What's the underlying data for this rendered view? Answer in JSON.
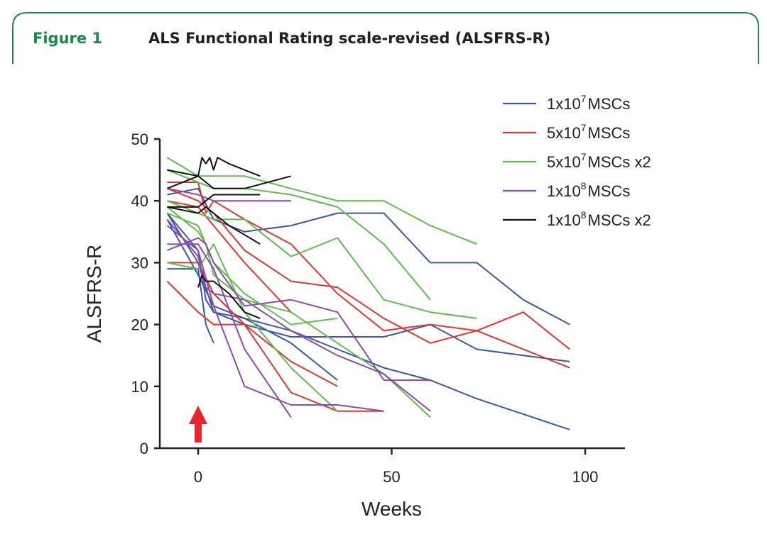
{
  "figure": {
    "label": "Figure 1",
    "title": "ALS Functional Rating scale-revised (ALSFRS-R)"
  },
  "colors": {
    "accent": "#1a8a4c",
    "arrow": "#e8262b"
  },
  "chart_data": {
    "type": "line",
    "title": "",
    "xlabel": "Weeks",
    "ylabel": "ALSFRS-R",
    "xlim": [
      -10,
      110
    ],
    "ylim": [
      0,
      50
    ],
    "xticks": [
      "0",
      "50",
      "100"
    ],
    "yticks": [
      "0",
      "10",
      "20",
      "30",
      "40",
      "50"
    ],
    "annotation": "Red upward arrow at week 0",
    "legend_position": "top-right",
    "legend": [
      {
        "base": "1x10",
        "exp": "7",
        "suffix": "MSCs",
        "color": "#3b58a8"
      },
      {
        "base": "5x10",
        "exp": "7",
        "suffix": "MSCs",
        "color": "#e8322c"
      },
      {
        "base": "5x10",
        "exp": "7",
        "suffix": "MSCs x2",
        "color": "#5cbf4a"
      },
      {
        "base": "1x10",
        "exp": "8",
        "suffix": "MSCs",
        "color": "#8a4bb0"
      },
      {
        "base": "1x10",
        "exp": "8",
        "suffix": "MSCs x2",
        "color": "#111111"
      }
    ],
    "series": [
      {
        "group": 0,
        "points": [
          [
            -8,
            41
          ],
          [
            0,
            42
          ],
          [
            4,
            37
          ],
          [
            12,
            35
          ],
          [
            24,
            36
          ],
          [
            36,
            38
          ],
          [
            48,
            38
          ],
          [
            60,
            30
          ],
          [
            72,
            30
          ],
          [
            84,
            24
          ],
          [
            96,
            20
          ]
        ]
      },
      {
        "group": 0,
        "points": [
          [
            -8,
            38
          ],
          [
            0,
            30
          ],
          [
            4,
            22
          ],
          [
            12,
            20
          ],
          [
            24,
            18
          ],
          [
            36,
            18
          ],
          [
            48,
            18
          ],
          [
            60,
            20
          ],
          [
            72,
            16
          ],
          [
            96,
            14
          ]
        ]
      },
      {
        "group": 0,
        "points": [
          [
            -8,
            37
          ],
          [
            0,
            28
          ],
          [
            4,
            23
          ],
          [
            12,
            21
          ],
          [
            24,
            19
          ],
          [
            36,
            16
          ],
          [
            48,
            13
          ],
          [
            60,
            11
          ],
          [
            72,
            8
          ],
          [
            96,
            3
          ]
        ]
      },
      {
        "group": 0,
        "points": [
          [
            -8,
            29
          ],
          [
            0,
            29
          ],
          [
            2,
            20
          ],
          [
            4,
            17
          ]
        ]
      },
      {
        "group": 0,
        "points": [
          [
            -8,
            38
          ],
          [
            0,
            32
          ],
          [
            2,
            24
          ],
          [
            4,
            22
          ],
          [
            12,
            21
          ],
          [
            24,
            17
          ],
          [
            36,
            11
          ]
        ]
      },
      {
        "group": 1,
        "points": [
          [
            -8,
            43
          ],
          [
            0,
            43
          ],
          [
            2,
            38
          ],
          [
            4,
            40
          ],
          [
            12,
            37
          ],
          [
            24,
            33
          ],
          [
            36,
            25
          ],
          [
            48,
            19
          ],
          [
            60,
            20
          ],
          [
            72,
            19
          ],
          [
            84,
            22
          ],
          [
            96,
            16
          ]
        ]
      },
      {
        "group": 1,
        "points": [
          [
            -8,
            42
          ],
          [
            0,
            40
          ],
          [
            4,
            38
          ],
          [
            12,
            32
          ],
          [
            24,
            27
          ],
          [
            36,
            26
          ],
          [
            48,
            21
          ],
          [
            60,
            17
          ],
          [
            72,
            19
          ],
          [
            96,
            13
          ]
        ]
      },
      {
        "group": 1,
        "points": [
          [
            -8,
            30
          ],
          [
            0,
            30
          ],
          [
            4,
            25
          ],
          [
            12,
            20
          ],
          [
            24,
            14
          ],
          [
            36,
            10
          ]
        ]
      },
      {
        "group": 1,
        "points": [
          [
            -8,
            27
          ],
          [
            0,
            22
          ],
          [
            4,
            20
          ],
          [
            12,
            20
          ],
          [
            24,
            9
          ],
          [
            36,
            6
          ],
          [
            48,
            6
          ]
        ]
      },
      {
        "group": 1,
        "points": [
          [
            -8,
            40
          ],
          [
            0,
            39
          ],
          [
            4,
            36
          ],
          [
            12,
            30
          ],
          [
            24,
            22
          ]
        ]
      },
      {
        "group": 2,
        "points": [
          [
            -8,
            47
          ],
          [
            0,
            44
          ],
          [
            4,
            44
          ],
          [
            12,
            44
          ],
          [
            24,
            42
          ],
          [
            36,
            40
          ],
          [
            48,
            40
          ],
          [
            60,
            36
          ],
          [
            72,
            33
          ]
        ]
      },
      {
        "group": 2,
        "points": [
          [
            -8,
            45
          ],
          [
            0,
            43
          ],
          [
            4,
            42
          ],
          [
            12,
            42
          ],
          [
            24,
            41
          ],
          [
            36,
            39
          ],
          [
            48,
            33
          ],
          [
            60,
            24
          ]
        ]
      },
      {
        "group": 2,
        "points": [
          [
            -8,
            40
          ],
          [
            0,
            38
          ],
          [
            4,
            37
          ],
          [
            12,
            37
          ],
          [
            24,
            31
          ],
          [
            36,
            34
          ],
          [
            48,
            24
          ],
          [
            60,
            22
          ],
          [
            72,
            21
          ]
        ]
      },
      {
        "group": 2,
        "points": [
          [
            -8,
            38
          ],
          [
            0,
            36
          ],
          [
            4,
            30
          ],
          [
            12,
            25
          ],
          [
            24,
            20
          ],
          [
            36,
            21
          ]
        ]
      },
      {
        "group": 2,
        "points": [
          [
            -8,
            39
          ],
          [
            0,
            35
          ],
          [
            2,
            33
          ],
          [
            4,
            28
          ],
          [
            12,
            24
          ],
          [
            24,
            22
          ],
          [
            36,
            17
          ],
          [
            48,
            12
          ],
          [
            60,
            5
          ]
        ]
      },
      {
        "group": 2,
        "points": [
          [
            -8,
            30
          ],
          [
            0,
            29
          ],
          [
            4,
            33
          ],
          [
            12,
            22
          ],
          [
            24,
            13
          ],
          [
            36,
            6
          ]
        ]
      },
      {
        "group": 3,
        "points": [
          [
            -8,
            42
          ],
          [
            0,
            41
          ],
          [
            4,
            40
          ],
          [
            12,
            40
          ],
          [
            24,
            40
          ]
        ]
      },
      {
        "group": 3,
        "points": [
          [
            -8,
            32
          ],
          [
            0,
            34
          ],
          [
            2,
            33
          ],
          [
            4,
            30
          ],
          [
            12,
            23
          ],
          [
            24,
            24
          ],
          [
            36,
            22
          ],
          [
            48,
            11
          ],
          [
            60,
            11
          ]
        ]
      },
      {
        "group": 3,
        "points": [
          [
            -8,
            37
          ],
          [
            0,
            31
          ],
          [
            2,
            26
          ],
          [
            4,
            25
          ],
          [
            12,
            24
          ],
          [
            24,
            19
          ],
          [
            36,
            15
          ],
          [
            48,
            12
          ],
          [
            60,
            6
          ]
        ]
      },
      {
        "group": 3,
        "points": [
          [
            -8,
            36
          ],
          [
            0,
            32
          ],
          [
            4,
            23
          ],
          [
            12,
            10
          ],
          [
            24,
            7
          ],
          [
            36,
            7
          ],
          [
            48,
            6
          ]
        ]
      },
      {
        "group": 3,
        "points": [
          [
            -8,
            33
          ],
          [
            0,
            33
          ],
          [
            4,
            29
          ],
          [
            12,
            16
          ],
          [
            24,
            5
          ]
        ]
      },
      {
        "group": 4,
        "points": [
          [
            -8,
            45
          ],
          [
            0,
            44
          ],
          [
            1,
            47
          ],
          [
            2,
            46
          ],
          [
            3,
            47
          ],
          [
            4,
            45
          ],
          [
            5,
            47
          ],
          [
            8,
            46
          ],
          [
            16,
            44
          ]
        ]
      },
      {
        "group": 4,
        "points": [
          [
            -8,
            42
          ],
          [
            0,
            44
          ],
          [
            2,
            43
          ],
          [
            4,
            42
          ],
          [
            12,
            42
          ],
          [
            24,
            44
          ]
        ]
      },
      {
        "group": 4,
        "points": [
          [
            -8,
            39
          ],
          [
            0,
            39
          ],
          [
            2,
            40
          ],
          [
            4,
            41
          ],
          [
            12,
            41
          ],
          [
            16,
            41
          ]
        ]
      },
      {
        "group": 4,
        "points": [
          [
            -8,
            39
          ],
          [
            0,
            38
          ],
          [
            2,
            39
          ],
          [
            4,
            38
          ],
          [
            8,
            36
          ],
          [
            16,
            33
          ]
        ]
      },
      {
        "group": 4,
        "points": [
          [
            0,
            26
          ],
          [
            1,
            28
          ],
          [
            2,
            27
          ],
          [
            4,
            27
          ],
          [
            8,
            25
          ],
          [
            12,
            22
          ],
          [
            16,
            21
          ]
        ]
      }
    ]
  }
}
